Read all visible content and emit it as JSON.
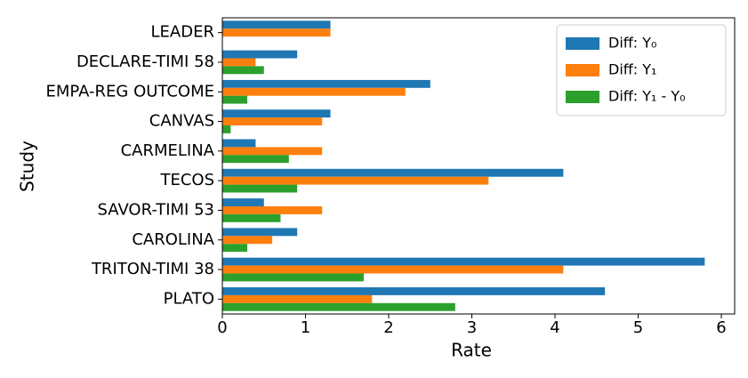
{
  "chart_data": {
    "type": "barh",
    "x_label": "Rate",
    "y_label": "Study",
    "categories": [
      "LEADER",
      "DECLARE-TIMI 58",
      "EMPA-REG OUTCOME",
      "CANVAS",
      "CARMELINA",
      "TECOS",
      "SAVOR-TIMI 53",
      "CAROLINA",
      "TRITON-TIMI 38",
      "PLATO"
    ],
    "series": [
      {
        "name": "Diff: Y₀",
        "color": "#1f77b4",
        "values": [
          1.3,
          0.9,
          2.5,
          1.3,
          0.4,
          4.1,
          0.5,
          0.9,
          5.8,
          4.6
        ]
      },
      {
        "name": "Diff: Y₁",
        "color": "#ff7f0e",
        "values": [
          1.3,
          0.4,
          2.2,
          1.2,
          1.2,
          3.2,
          1.2,
          0.6,
          4.1,
          1.8
        ]
      },
      {
        "name": "Diff: Y₁ - Y₀",
        "color": "#2ca02c",
        "values": [
          0,
          0.5,
          0.3,
          0.1,
          0.8,
          0.9,
          0.7,
          0.3,
          1.7,
          2.8
        ]
      }
    ],
    "xlim": [
      0,
      6.16
    ],
    "xticks": [
      0,
      1,
      2,
      3,
      4,
      5,
      6
    ],
    "legend": "upper right"
  }
}
